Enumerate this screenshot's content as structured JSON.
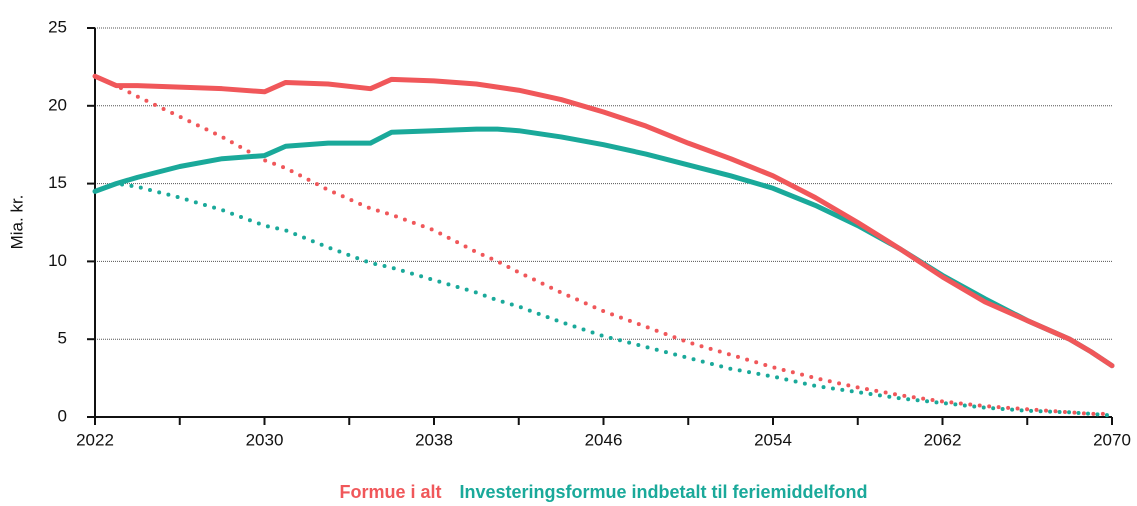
{
  "chart_data": {
    "type": "line",
    "ylabel": "Mia. kr.",
    "x": [
      2022,
      2023,
      2024,
      2026,
      2028,
      2030,
      2031,
      2033,
      2035,
      2036,
      2038,
      2040,
      2041,
      2042,
      2044,
      2046,
      2048,
      2050,
      2052,
      2054,
      2056,
      2058,
      2060,
      2062,
      2064,
      2066,
      2068,
      2069,
      2070
    ],
    "series": [
      {
        "name": "Formue i alt",
        "color": "#f0575a",
        "style": "solid",
        "values": [
          21.9,
          21.3,
          21.3,
          21.2,
          21.1,
          20.9,
          21.5,
          21.4,
          21.1,
          21.7,
          21.6,
          21.4,
          21.2,
          21.0,
          20.4,
          19.6,
          18.7,
          17.6,
          16.6,
          15.5,
          14.1,
          12.5,
          10.8,
          9.0,
          7.4,
          6.2,
          5.0,
          4.2,
          3.3
        ]
      },
      {
        "name": "Investeringsformue indbetalt til feriemiddelfond",
        "color": "#1aa99a",
        "style": "solid",
        "values": [
          14.5,
          15.0,
          15.4,
          16.1,
          16.6,
          16.8,
          17.4,
          17.6,
          17.6,
          18.3,
          18.4,
          18.5,
          18.5,
          18.4,
          18.0,
          17.5,
          16.9,
          16.2,
          15.5,
          14.7,
          13.6,
          12.3,
          10.8,
          9.1,
          7.6,
          6.2,
          5.0,
          4.2,
          3.3
        ]
      },
      {
        "color": "#f0575a",
        "style": "dotted",
        "values": [
          21.9,
          21.3,
          20.6,
          19.3,
          18.0,
          16.5,
          16.0,
          14.6,
          13.4,
          13.0,
          12.0,
          10.6,
          10.0,
          9.3,
          8.0,
          6.8,
          5.8,
          4.8,
          4.0,
          3.2,
          2.5,
          1.9,
          1.4,
          1.0,
          0.7,
          0.5,
          0.3,
          0.2,
          0.2
        ]
      },
      {
        "color": "#1aa99a",
        "style": "dotted",
        "values": [
          14.5,
          15.0,
          14.8,
          14.1,
          13.3,
          12.3,
          12.0,
          10.9,
          9.9,
          9.6,
          8.8,
          8.0,
          7.5,
          7.1,
          6.1,
          5.2,
          4.5,
          3.8,
          3.1,
          2.6,
          2.0,
          1.6,
          1.2,
          0.9,
          0.6,
          0.4,
          0.3,
          0.2,
          0.1
        ]
      }
    ],
    "xlim": [
      2022,
      2070
    ],
    "xticks": [
      2022,
      2030,
      2038,
      2046,
      2054,
      2062,
      2070
    ],
    "xminor_ticks": [
      2026,
      2034,
      2042,
      2050,
      2058,
      2066
    ],
    "ylim": [
      0,
      25
    ],
    "yticks": [
      0,
      5,
      10,
      15,
      20,
      25
    ],
    "grid": true,
    "legend": "bottom"
  }
}
